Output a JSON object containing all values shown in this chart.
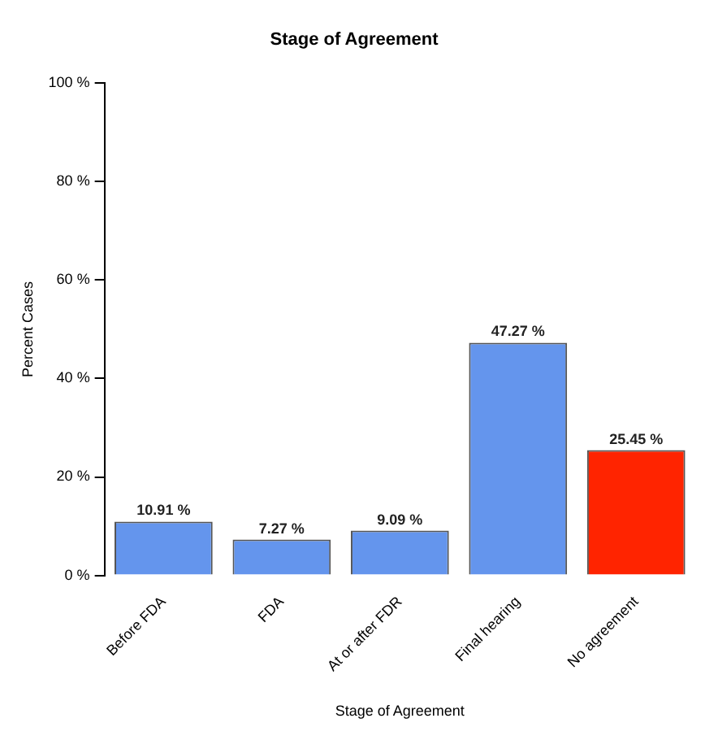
{
  "chart_data": {
    "type": "bar",
    "title": "Stage of Agreement",
    "xlabel": "Stage of Agreement",
    "ylabel": "Percent Cases",
    "categories": [
      "Before FDA",
      "FDA",
      "At or after FDR",
      "Final hearing",
      "No agreement"
    ],
    "values": [
      10.91,
      7.27,
      9.09,
      47.27,
      25.45
    ],
    "colors": [
      "#6495ed",
      "#6495ed",
      "#6495ed",
      "#6495ed",
      "#ff2400"
    ],
    "value_labels": [
      "10.91 %",
      "7.27 %",
      "9.09 %",
      "47.27 %",
      "25.45 %"
    ],
    "ylim": [
      0,
      100
    ],
    "yticks": [
      {
        "value": 0,
        "label": "0 %"
      },
      {
        "value": 20,
        "label": "20 %"
      },
      {
        "value": 40,
        "label": "40 %"
      },
      {
        "value": 60,
        "label": "60 %"
      },
      {
        "value": 80,
        "label": "80 %"
      },
      {
        "value": 100,
        "label": "100 %"
      }
    ],
    "grid": false,
    "legend": false
  }
}
